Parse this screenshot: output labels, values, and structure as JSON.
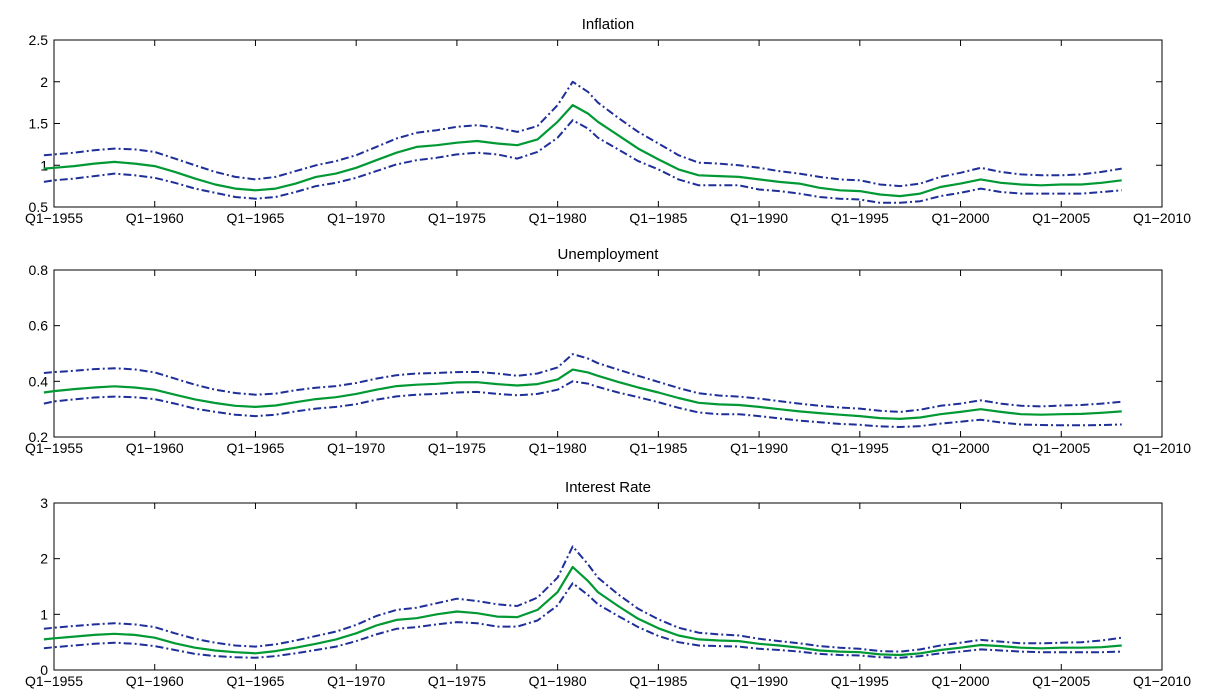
{
  "chart_data": [
    {
      "type": "line",
      "title": "Inflation",
      "xlim": [
        1955,
        2010
      ],
      "ylim": [
        0.5,
        2.5
      ],
      "yticks": [
        "0.5",
        "1",
        "1.5",
        "2",
        "2.5"
      ],
      "xticks": [
        "Q1−1955",
        "Q1−1960",
        "Q1−1965",
        "Q1−1970",
        "Q1−1975",
        "Q1−1980",
        "Q1−1985",
        "Q1−1990",
        "Q1−1995",
        "Q1−2000",
        "Q1−2005",
        "Q1−2010"
      ],
      "x": [
        1954.5,
        1955,
        1956,
        1957,
        1958,
        1959,
        1960,
        1961,
        1962,
        1963,
        1964,
        1965,
        1966,
        1967,
        1968,
        1969,
        1970,
        1971,
        1972,
        1973,
        1974,
        1975,
        1976,
        1977,
        1978,
        1979,
        1980,
        1980.75,
        1981.5,
        1982,
        1983,
        1984,
        1985,
        1986,
        1987,
        1988,
        1989,
        1990,
        1991,
        1992,
        1993,
        1994,
        1995,
        1996,
        1997,
        1998,
        1999,
        2000,
        2001,
        2002,
        2003,
        2004,
        2005,
        2006,
        2007,
        2008
      ],
      "series": [
        {
          "role": "estimate",
          "color": "#009933",
          "values": [
            0.96,
            0.97,
            0.99,
            1.02,
            1.04,
            1.02,
            0.99,
            0.92,
            0.84,
            0.77,
            0.72,
            0.7,
            0.72,
            0.78,
            0.86,
            0.9,
            0.97,
            1.06,
            1.15,
            1.22,
            1.24,
            1.27,
            1.29,
            1.26,
            1.24,
            1.31,
            1.52,
            1.72,
            1.62,
            1.52,
            1.36,
            1.2,
            1.07,
            0.95,
            0.88,
            0.87,
            0.86,
            0.83,
            0.8,
            0.78,
            0.73,
            0.7,
            0.69,
            0.65,
            0.63,
            0.66,
            0.74,
            0.78,
            0.83,
            0.79,
            0.77,
            0.76,
            0.77,
            0.77,
            0.79,
            0.82
          ]
        },
        {
          "role": "upper",
          "color": "#1f2f99",
          "values": [
            1.12,
            1.13,
            1.15,
            1.18,
            1.2,
            1.19,
            1.16,
            1.08,
            1.0,
            0.92,
            0.86,
            0.83,
            0.86,
            0.93,
            1.0,
            1.05,
            1.12,
            1.22,
            1.32,
            1.39,
            1.42,
            1.46,
            1.48,
            1.45,
            1.4,
            1.47,
            1.72,
            2.0,
            1.88,
            1.75,
            1.57,
            1.4,
            1.26,
            1.12,
            1.03,
            1.02,
            1.0,
            0.97,
            0.93,
            0.9,
            0.86,
            0.83,
            0.82,
            0.77,
            0.75,
            0.78,
            0.86,
            0.91,
            0.97,
            0.92,
            0.89,
            0.88,
            0.88,
            0.89,
            0.92,
            0.96
          ]
        },
        {
          "role": "lower",
          "color": "#1f2f99",
          "values": [
            0.8,
            0.82,
            0.84,
            0.87,
            0.9,
            0.88,
            0.85,
            0.79,
            0.72,
            0.67,
            0.62,
            0.6,
            0.62,
            0.68,
            0.75,
            0.79,
            0.85,
            0.93,
            1.01,
            1.06,
            1.09,
            1.13,
            1.15,
            1.13,
            1.08,
            1.16,
            1.33,
            1.54,
            1.44,
            1.33,
            1.19,
            1.05,
            0.95,
            0.83,
            0.76,
            0.76,
            0.76,
            0.71,
            0.69,
            0.66,
            0.62,
            0.6,
            0.59,
            0.55,
            0.55,
            0.57,
            0.63,
            0.67,
            0.72,
            0.68,
            0.66,
            0.66,
            0.66,
            0.66,
            0.68,
            0.7
          ]
        }
      ]
    },
    {
      "type": "line",
      "title": "Unemployment",
      "xlim": [
        1955,
        2010
      ],
      "ylim": [
        0.2,
        0.8
      ],
      "yticks": [
        "0.2",
        "0.4",
        "0.6",
        "0.8"
      ],
      "xticks": [
        "Q1−1955",
        "Q1−1960",
        "Q1−1965",
        "Q1−1970",
        "Q1−1975",
        "Q1−1980",
        "Q1−1985",
        "Q1−1990",
        "Q1−1995",
        "Q1−2000",
        "Q1−2005",
        "Q1−2010"
      ],
      "x": [
        1954.5,
        1955,
        1956,
        1957,
        1958,
        1959,
        1960,
        1961,
        1962,
        1963,
        1964,
        1965,
        1966,
        1967,
        1968,
        1969,
        1970,
        1971,
        1972,
        1973,
        1974,
        1975,
        1976,
        1977,
        1978,
        1979,
        1980,
        1980.75,
        1981.5,
        1982,
        1983,
        1984,
        1985,
        1986,
        1987,
        1988,
        1989,
        1990,
        1991,
        1992,
        1993,
        1994,
        1995,
        1996,
        1997,
        1998,
        1999,
        2000,
        2001,
        2002,
        2003,
        2004,
        2005,
        2006,
        2007,
        2008
      ],
      "series": [
        {
          "role": "estimate",
          "color": "#009933",
          "values": [
            0.36,
            0.365,
            0.372,
            0.378,
            0.382,
            0.378,
            0.37,
            0.352,
            0.335,
            0.322,
            0.312,
            0.308,
            0.313,
            0.325,
            0.336,
            0.343,
            0.355,
            0.37,
            0.383,
            0.388,
            0.391,
            0.396,
            0.397,
            0.39,
            0.385,
            0.39,
            0.407,
            0.442,
            0.432,
            0.42,
            0.398,
            0.378,
            0.36,
            0.34,
            0.323,
            0.317,
            0.315,
            0.308,
            0.3,
            0.292,
            0.286,
            0.28,
            0.275,
            0.268,
            0.265,
            0.27,
            0.282,
            0.29,
            0.3,
            0.29,
            0.282,
            0.28,
            0.282,
            0.283,
            0.287,
            0.292
          ]
        },
        {
          "role": "upper",
          "color": "#1f2f99",
          "values": [
            0.43,
            0.433,
            0.438,
            0.444,
            0.447,
            0.443,
            0.432,
            0.41,
            0.388,
            0.37,
            0.358,
            0.352,
            0.356,
            0.368,
            0.377,
            0.383,
            0.394,
            0.41,
            0.422,
            0.428,
            0.43,
            0.433,
            0.434,
            0.428,
            0.42,
            0.428,
            0.45,
            0.498,
            0.482,
            0.465,
            0.442,
            0.42,
            0.398,
            0.376,
            0.357,
            0.349,
            0.345,
            0.338,
            0.329,
            0.32,
            0.312,
            0.306,
            0.302,
            0.294,
            0.29,
            0.298,
            0.312,
            0.32,
            0.332,
            0.32,
            0.312,
            0.31,
            0.313,
            0.315,
            0.32,
            0.327
          ]
        },
        {
          "role": "lower",
          "color": "#1f2f99",
          "values": [
            0.32,
            0.328,
            0.335,
            0.342,
            0.345,
            0.343,
            0.336,
            0.32,
            0.302,
            0.29,
            0.28,
            0.275,
            0.28,
            0.292,
            0.302,
            0.308,
            0.318,
            0.334,
            0.346,
            0.352,
            0.355,
            0.36,
            0.362,
            0.355,
            0.35,
            0.355,
            0.37,
            0.4,
            0.392,
            0.38,
            0.36,
            0.343,
            0.325,
            0.305,
            0.288,
            0.282,
            0.282,
            0.275,
            0.267,
            0.259,
            0.253,
            0.247,
            0.244,
            0.238,
            0.236,
            0.239,
            0.248,
            0.255,
            0.262,
            0.252,
            0.245,
            0.243,
            0.242,
            0.242,
            0.243,
            0.245
          ]
        }
      ]
    },
    {
      "type": "line",
      "title": "Interest Rate",
      "xlim": [
        1955,
        2010
      ],
      "ylim": [
        0,
        3
      ],
      "yticks": [
        "0",
        "1",
        "2",
        "3"
      ],
      "xticks": [
        "Q1−1955",
        "Q1−1960",
        "Q1−1965",
        "Q1−1970",
        "Q1−1975",
        "Q1−1980",
        "Q1−1985",
        "Q1−1990",
        "Q1−1995",
        "Q1−2000",
        "Q1−2005",
        "Q1−2010"
      ],
      "x": [
        1954.5,
        1955,
        1956,
        1957,
        1958,
        1959,
        1960,
        1961,
        1962,
        1963,
        1964,
        1965,
        1966,
        1967,
        1968,
        1969,
        1970,
        1971,
        1972,
        1973,
        1974,
        1975,
        1976,
        1977,
        1978,
        1979,
        1980,
        1980.75,
        1981.5,
        1982,
        1983,
        1984,
        1985,
        1986,
        1987,
        1988,
        1989,
        1990,
        1991,
        1992,
        1993,
        1994,
        1995,
        1996,
        1997,
        1998,
        1999,
        2000,
        2001,
        2002,
        2003,
        2004,
        2005,
        2006,
        2007,
        2008
      ],
      "series": [
        {
          "role": "estimate",
          "color": "#009933",
          "values": [
            0.55,
            0.57,
            0.6,
            0.63,
            0.65,
            0.63,
            0.58,
            0.48,
            0.4,
            0.35,
            0.32,
            0.3,
            0.34,
            0.4,
            0.47,
            0.55,
            0.66,
            0.8,
            0.9,
            0.93,
            1.0,
            1.05,
            1.02,
            0.96,
            0.95,
            1.08,
            1.4,
            1.85,
            1.6,
            1.4,
            1.15,
            0.92,
            0.75,
            0.62,
            0.55,
            0.53,
            0.52,
            0.47,
            0.44,
            0.4,
            0.35,
            0.33,
            0.32,
            0.28,
            0.27,
            0.3,
            0.36,
            0.4,
            0.45,
            0.43,
            0.4,
            0.39,
            0.4,
            0.4,
            0.41,
            0.44
          ]
        },
        {
          "role": "upper",
          "color": "#1f2f99",
          "values": [
            0.74,
            0.76,
            0.79,
            0.82,
            0.84,
            0.82,
            0.77,
            0.66,
            0.56,
            0.49,
            0.44,
            0.42,
            0.46,
            0.53,
            0.61,
            0.69,
            0.81,
            0.97,
            1.08,
            1.12,
            1.2,
            1.28,
            1.24,
            1.18,
            1.15,
            1.3,
            1.66,
            2.22,
            1.9,
            1.66,
            1.36,
            1.1,
            0.91,
            0.76,
            0.67,
            0.64,
            0.62,
            0.56,
            0.52,
            0.48,
            0.43,
            0.4,
            0.38,
            0.34,
            0.33,
            0.37,
            0.44,
            0.49,
            0.54,
            0.51,
            0.48,
            0.48,
            0.49,
            0.5,
            0.53,
            0.58
          ]
        },
        {
          "role": "lower",
          "color": "#1f2f99",
          "values": [
            0.39,
            0.41,
            0.44,
            0.47,
            0.49,
            0.47,
            0.43,
            0.36,
            0.29,
            0.25,
            0.23,
            0.22,
            0.25,
            0.3,
            0.36,
            0.42,
            0.52,
            0.64,
            0.74,
            0.77,
            0.82,
            0.86,
            0.84,
            0.78,
            0.78,
            0.89,
            1.16,
            1.56,
            1.35,
            1.18,
            0.97,
            0.77,
            0.61,
            0.5,
            0.44,
            0.43,
            0.42,
            0.38,
            0.36,
            0.33,
            0.29,
            0.27,
            0.26,
            0.23,
            0.22,
            0.25,
            0.3,
            0.33,
            0.37,
            0.35,
            0.33,
            0.32,
            0.32,
            0.32,
            0.32,
            0.33
          ]
        }
      ]
    }
  ]
}
